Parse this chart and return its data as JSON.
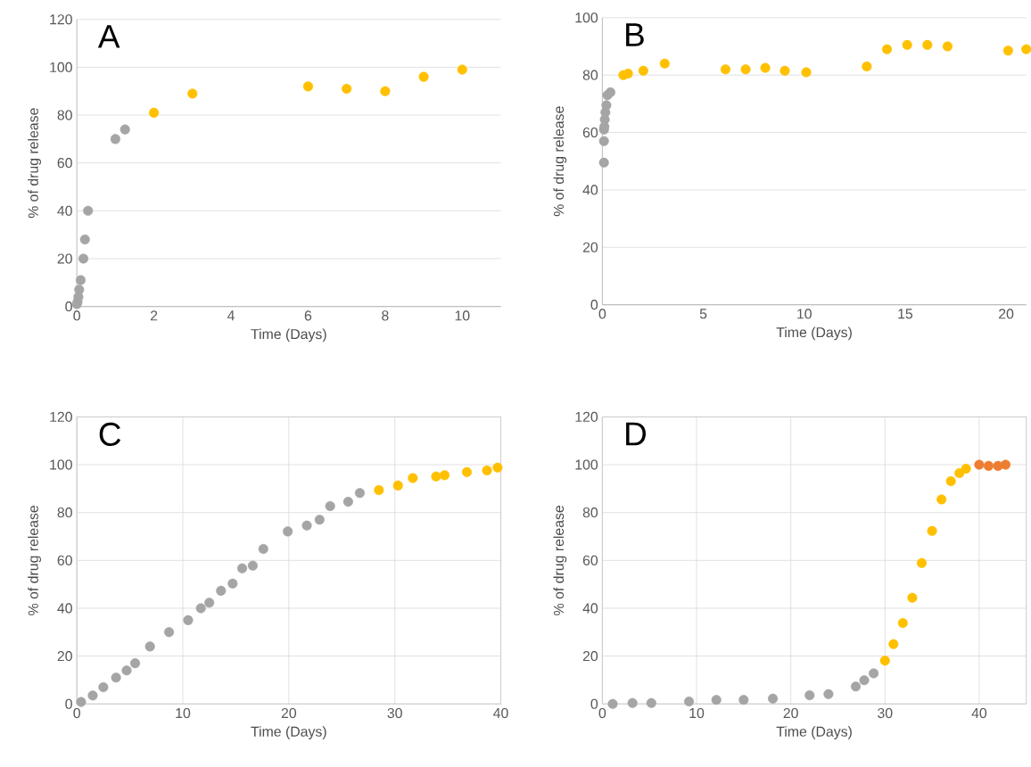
{
  "chart_data": [
    {
      "type": "scatter",
      "title": "A",
      "xlabel": "Time (Days)",
      "ylabel": "% of drug release",
      "xlim": [
        0,
        11
      ],
      "ylim": [
        0,
        120
      ],
      "xticks": [
        0,
        2,
        4,
        6,
        8,
        10
      ],
      "yticks": [
        0,
        20,
        40,
        60,
        80,
        100,
        120
      ],
      "grid": "y",
      "marker": "circle",
      "series": [
        {
          "color": "#a5a5a5",
          "x": [
            0,
            0.02,
            0.04,
            0.06,
            0.1,
            0.17,
            0.21,
            0.29,
            1,
            1.25
          ],
          "values": [
            1,
            2,
            4,
            7,
            11,
            20,
            28,
            40,
            70,
            74
          ]
        },
        {
          "color": "#ffc000",
          "x": [
            2,
            3,
            6,
            7,
            8,
            9,
            10
          ],
          "values": [
            81,
            89,
            92,
            91,
            90,
            96,
            99
          ]
        }
      ]
    },
    {
      "type": "scatter",
      "title": "B",
      "xlabel": "Time (Days)",
      "ylabel": "% of drug release",
      "xlim": [
        0,
        21
      ],
      "ylim": [
        0,
        100
      ],
      "xticks": [
        0,
        5,
        10,
        15,
        20
      ],
      "yticks": [
        0,
        20,
        40,
        60,
        80,
        100
      ],
      "grid": "y",
      "marker": "circle",
      "series": [
        {
          "color": "#a5a5a5",
          "x": [
            0.08,
            0.08,
            0.08,
            0.1,
            0.12,
            0.15,
            0.2,
            0.25,
            0.4
          ],
          "values": [
            49.5,
            57,
            61,
            62,
            64.5,
            67,
            69.5,
            73,
            74
          ]
        },
        {
          "color": "#ffc000",
          "x": [
            1.04,
            1.27,
            2.03,
            3.09,
            6.1,
            7.1,
            8.07,
            9.04,
            10.1,
            13.1,
            14.1,
            15.1,
            16.1,
            17.1,
            20.1,
            21
          ],
          "values": [
            80,
            80.5,
            81.5,
            84,
            82,
            82,
            82.5,
            81.5,
            81,
            83,
            89,
            90.5,
            90.5,
            90,
            88.5,
            89
          ]
        }
      ]
    },
    {
      "type": "scatter",
      "title": "C",
      "xlabel": "Time (Days)",
      "ylabel": "% of drug release",
      "xlim": [
        0,
        40
      ],
      "ylim": [
        0,
        120
      ],
      "xticks": [
        0,
        10,
        20,
        30,
        40
      ],
      "yticks": [
        0,
        20,
        40,
        60,
        80,
        100,
        120
      ],
      "grid": true,
      "marker": "circle",
      "series": [
        {
          "color": "#a5a5a5",
          "x": [
            0.4,
            1.5,
            2.5,
            3.7,
            4.7,
            5.5,
            6.9,
            8.7,
            10.5,
            11.7,
            12.5,
            13.6,
            14.7,
            15.6,
            16.6,
            17.6,
            19.9,
            21.7,
            22.9,
            23.9,
            25.6,
            26.7
          ],
          "values": [
            0.8,
            3.5,
            7,
            11,
            14,
            17,
            24,
            30,
            35,
            40,
            42.3,
            47.3,
            50.3,
            56.7,
            57.8,
            64.8,
            72.1,
            74.6,
            77,
            82.7,
            84.5,
            88.2
          ]
        },
        {
          "color": "#ffc000",
          "x": [
            28.5,
            30.3,
            31.7,
            33.9,
            34.7,
            36.8,
            38.7,
            39.7
          ],
          "values": [
            89.4,
            91.3,
            94.4,
            95.1,
            95.6,
            96.9,
            97.6,
            98.8
          ]
        }
      ]
    },
    {
      "type": "scatter",
      "title": "D",
      "xlabel": "Time (Days)",
      "ylabel": "% of drug release",
      "xlim": [
        0,
        45
      ],
      "ylim": [
        0,
        120
      ],
      "xticks": [
        0,
        10,
        20,
        30,
        40
      ],
      "yticks": [
        0,
        20,
        40,
        60,
        80,
        100,
        120
      ],
      "grid": true,
      "marker": "circle",
      "series": [
        {
          "color": "#a5a5a5",
          "x": [
            1.1,
            3.2,
            5.2,
            9.2,
            12.1,
            15,
            18.1,
            22,
            24,
            26.9,
            27.8,
            28.8
          ],
          "values": [
            0,
            0.4,
            0.4,
            1,
            1.7,
            1.7,
            2.2,
            3.6,
            4.1,
            7.3,
            9.9,
            12.8
          ]
        },
        {
          "color": "#ffc000",
          "x": [
            30,
            30.9,
            31.9,
            32.9,
            33.9,
            35,
            36,
            37,
            37.9,
            38.6
          ],
          "values": [
            18.1,
            25,
            33.8,
            44.4,
            58.9,
            72.3,
            85.5,
            93.1,
            96.5,
            98.3
          ]
        },
        {
          "color": "#ed7d31",
          "x": [
            40,
            41,
            42,
            42.8
          ],
          "values": [
            100,
            99.5,
            99.5,
            100
          ]
        }
      ]
    }
  ]
}
